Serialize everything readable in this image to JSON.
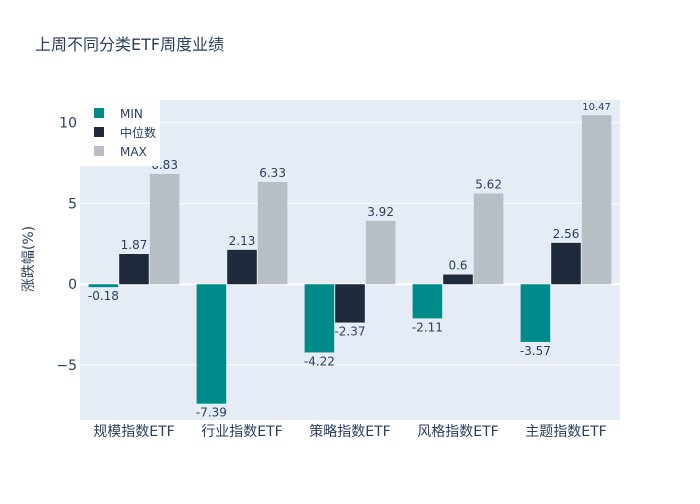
{
  "chart_data": {
    "type": "bar",
    "title": "上周不同分类ETF周度业绩",
    "xlabel": "",
    "ylabel": "涨跌幅(%)",
    "ylim": [
      -8.4,
      11.4
    ],
    "yticks": [
      -5,
      0,
      5,
      10
    ],
    "ytick_labels": [
      "−5",
      "0",
      "5",
      "10"
    ],
    "categories": [
      "规模指数ETF",
      "行业指数ETF",
      "策略指数ETF",
      "风格指数ETF",
      "主题指数ETF"
    ],
    "series": [
      {
        "name": "MIN",
        "values": [
          -0.18,
          -7.39,
          -4.22,
          -2.11,
          -3.57
        ],
        "labels": [
          "-0.18",
          "-7.39",
          "-4.22",
          "-2.11",
          "-3.57"
        ],
        "color": "#008b8b"
      },
      {
        "name": "中位数",
        "values": [
          1.87,
          2.13,
          -2.37,
          0.6,
          2.56
        ],
        "labels": [
          "1.87",
          "2.13",
          "-2.37",
          "0.6",
          "2.56"
        ],
        "color": "#1f2a3c"
      },
      {
        "name": "MAX",
        "values": [
          6.83,
          6.33,
          3.92,
          5.62,
          10.47
        ],
        "labels": [
          "6.83",
          "6.33",
          "3.92",
          "5.62",
          "10.47"
        ],
        "color": "#b8bec6"
      }
    ],
    "legend": {
      "placement": "top-left",
      "entries": [
        "MIN",
        "中位数",
        "MAX"
      ]
    },
    "grid": true,
    "colors": {
      "plot_bg": "#e5ecf6",
      "grid": "#ffffff",
      "text": "#2a3f5f"
    }
  }
}
